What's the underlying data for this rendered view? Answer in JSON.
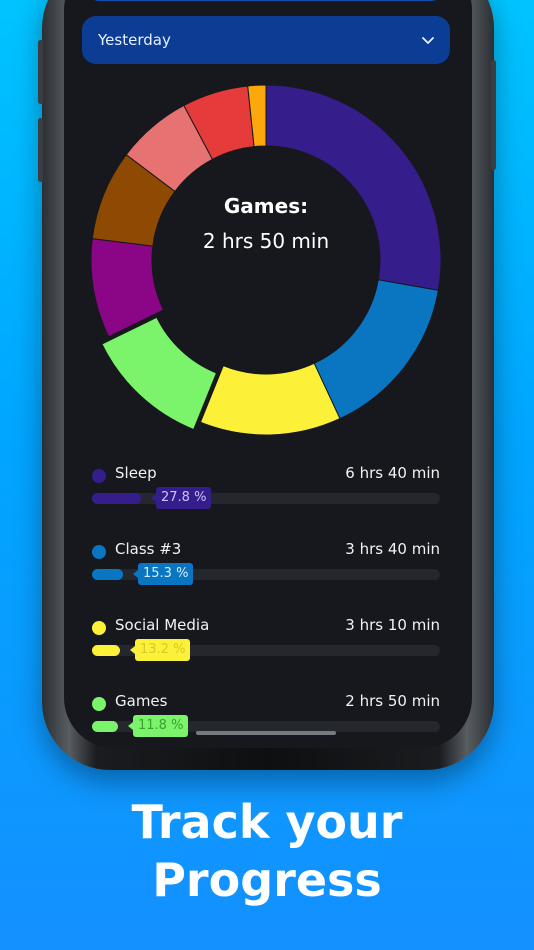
{
  "dropdown": {
    "selected": "Yesterday"
  },
  "donut": {
    "center_title": "Games:",
    "center_value": "2 hrs 50 min",
    "segments": [
      {
        "label": "Sleep",
        "color": "#361d8c",
        "deg": 100
      },
      {
        "label": "Class #3",
        "color": "#0a76c2",
        "deg": 55
      },
      {
        "label": "Social Media",
        "color": "#fcf038",
        "deg": 47
      },
      {
        "label": "Games",
        "color": "#7bf36a",
        "deg": 42,
        "exploded": true
      },
      {
        "label": "",
        "color": "#8b0587",
        "deg": 33
      },
      {
        "label": "",
        "color": "#8e4a02",
        "deg": 30
      },
      {
        "label": "",
        "color": "#e67372",
        "deg": 25
      },
      {
        "label": "",
        "color": "#e53b3a",
        "deg": 22
      },
      {
        "label": "",
        "color": "#fca80b",
        "deg": 6
      }
    ]
  },
  "activities": [
    {
      "name": "Sleep",
      "time": "6 hrs 40 min",
      "percent": "27.8 %",
      "fraction": 0.278,
      "color": "#361d8c",
      "tag_text_color": "#c9c3ff"
    },
    {
      "name": "Class #3",
      "time": "3 hrs 40 min",
      "percent": "15.3 %",
      "fraction": 0.153,
      "color": "#0a76c2",
      "tag_text_color": "#d8eeff"
    },
    {
      "name": "Social Media",
      "time": "3 hrs 10 min",
      "percent": "13.2 %",
      "fraction": 0.132,
      "color": "#fcf038",
      "tag_text_color": "#d6c92a"
    },
    {
      "name": "Games",
      "time": "2 hrs 50 min",
      "percent": "11.8 %",
      "fraction": 0.118,
      "color": "#7bf36a",
      "tag_text_color": "#3aa12f"
    }
  ],
  "headline": {
    "line1": "Track your",
    "line2": "Progress"
  },
  "icons": {
    "dropdown": "chevron-down-icon"
  }
}
